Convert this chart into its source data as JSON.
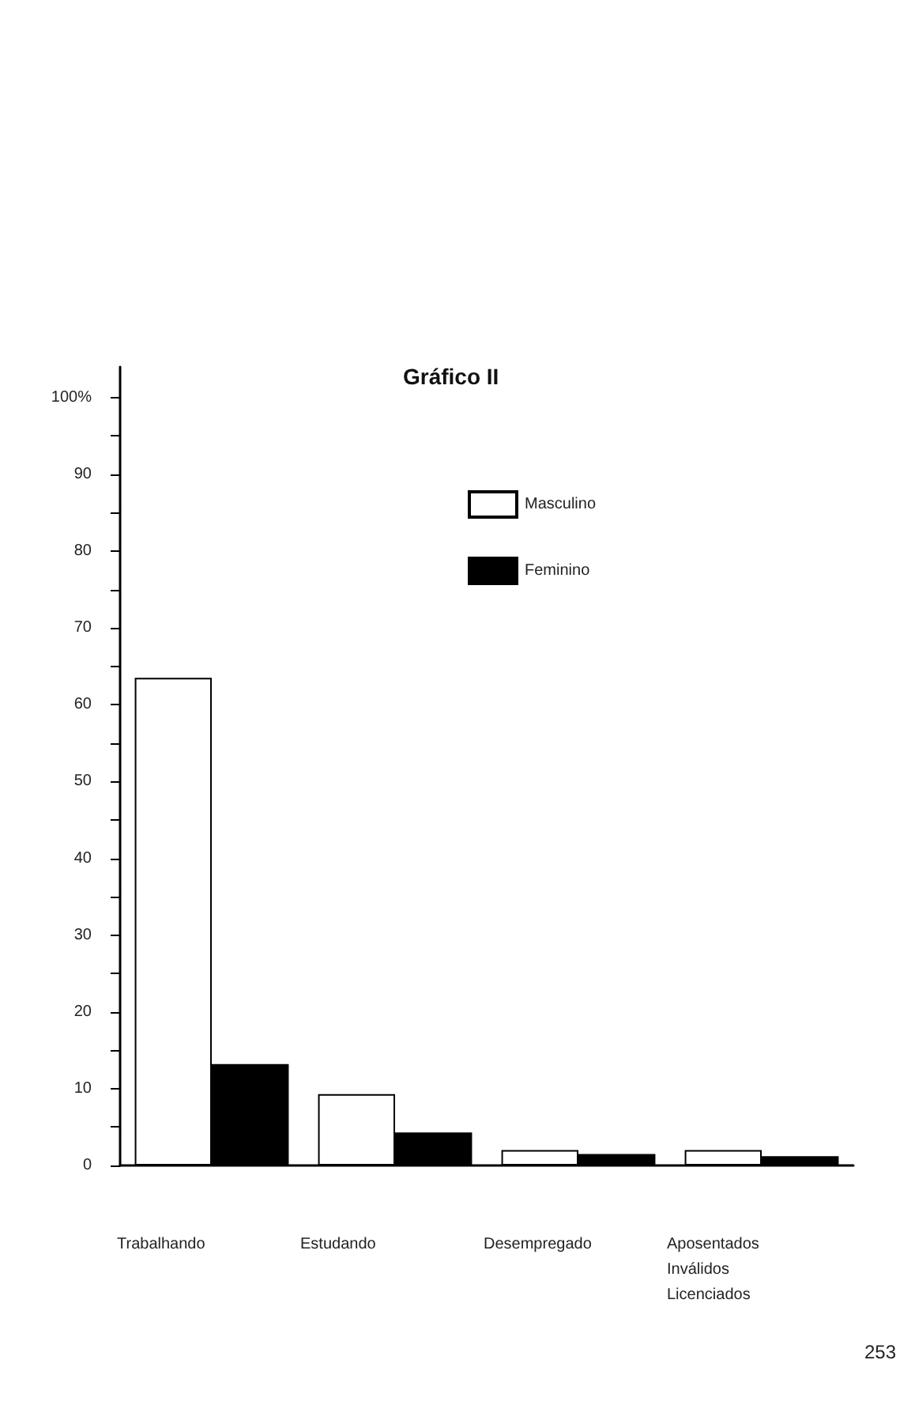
{
  "chart_data": {
    "type": "bar",
    "title": "Gráfico II",
    "categories": [
      "Trabalhando",
      "Estudando",
      "Desempregado",
      "Aposentados\nInválidos\nLicenciados"
    ],
    "series": [
      {
        "name": "Masculino",
        "color": "#ffffff",
        "values": [
          63.5,
          9.3,
          2,
          2
        ]
      },
      {
        "name": "Feminino",
        "color": "#000000",
        "values": [
          13.2,
          4.3,
          1.5,
          1.2
        ]
      }
    ],
    "ylim": [
      0,
      104
    ],
    "yticks": [
      0,
      {
        "value": 5,
        "label": null
      },
      10,
      {
        "value": 15,
        "label": null
      },
      20,
      {
        "value": 25,
        "label": null
      },
      30,
      {
        "value": 35,
        "label": null
      },
      40,
      {
        "value": 45,
        "label": null
      },
      50,
      {
        "value": 55,
        "label": null
      },
      60,
      {
        "value": 65,
        "label": null
      },
      70,
      {
        "value": 75,
        "label": null
      },
      80,
      {
        "value": 85,
        "label": null
      },
      90,
      {
        "value": 95,
        "label": null
      },
      {
        "value": 100,
        "label": "100%"
      }
    ],
    "grid": false,
    "legend": "top right",
    "annotations": [
      "253"
    ]
  }
}
